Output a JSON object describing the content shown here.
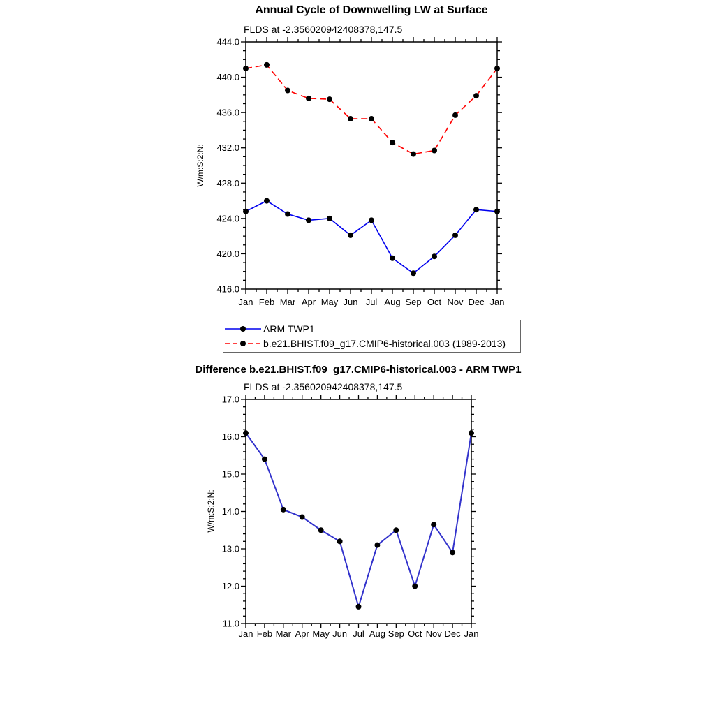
{
  "chart_data": [
    {
      "type": "line",
      "title": "Annual Cycle of Downwelling LW at Surface",
      "subtitle": "FLDS at -2.356020942408378,147.5",
      "ylabel": "W/m:S:2:N:",
      "xlabel": "",
      "categories": [
        "Jan",
        "Feb",
        "Mar",
        "Apr",
        "May",
        "Jun",
        "Jul",
        "Aug",
        "Sep",
        "Oct",
        "Nov",
        "Dec",
        "Jan"
      ],
      "ylim": [
        416.0,
        444.0
      ],
      "y_major_step": 4.0,
      "y_minor_step": 1.0,
      "x_minor_step": 0.5,
      "y_tick_labels": [
        "416.0",
        "420.0",
        "424.0",
        "428.0",
        "432.0",
        "436.0",
        "440.0",
        "444.0"
      ],
      "grid": false,
      "legend_position": "below-plot",
      "series": [
        {
          "name": "ARM TWP1",
          "color": "#0000ee",
          "line_style": "solid",
          "marker": "filled-circle",
          "marker_color": "#000000",
          "values": [
            424.8,
            426.0,
            424.5,
            423.8,
            424.0,
            422.1,
            423.8,
            419.5,
            417.8,
            419.7,
            422.1,
            425.0,
            424.8
          ]
        },
        {
          "name": "b.e21.BHIST.f09_g17.CMIP6-historical.003 (1989-2013)",
          "color": "#ff0000",
          "line_style": "dashed",
          "marker": "filled-circle",
          "marker_color": "#000000",
          "values": [
            441.0,
            441.4,
            438.5,
            437.6,
            437.5,
            435.3,
            435.3,
            432.6,
            431.3,
            431.7,
            435.7,
            437.9,
            441.0
          ]
        }
      ]
    },
    {
      "type": "line",
      "title": "Difference b.e21.BHIST.f09_g17.CMIP6-historical.003 - ARM TWP1",
      "subtitle": "FLDS at -2.356020942408378,147.5",
      "ylabel": "W/m:S:2:N:",
      "xlabel": "",
      "categories": [
        "Jan",
        "Feb",
        "Mar",
        "Apr",
        "May",
        "Jun",
        "Jul",
        "Aug",
        "Sep",
        "Oct",
        "Nov",
        "Dec",
        "Jan"
      ],
      "ylim": [
        11.0,
        17.0
      ],
      "y_major_step": 1.0,
      "y_minor_step": 0.2,
      "x_minor_step": 0.5,
      "y_tick_labels": [
        "11.0",
        "12.0",
        "13.0",
        "14.0",
        "15.0",
        "16.0",
        "17.0"
      ],
      "grid": false,
      "legend_position": "none",
      "series": [
        {
          "name": "difference",
          "color": "#3333cc",
          "line_style": "solid",
          "marker": "filled-circle",
          "marker_color": "#000000",
          "values": [
            16.1,
            15.4,
            14.05,
            13.85,
            13.5,
            13.2,
            11.45,
            13.1,
            13.5,
            12.0,
            13.65,
            12.9,
            16.1
          ]
        }
      ]
    }
  ]
}
